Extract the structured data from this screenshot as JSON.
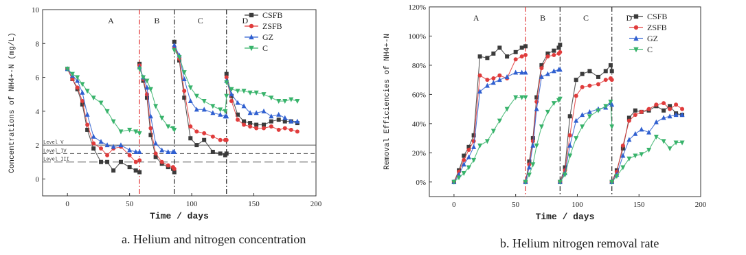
{
  "chart_data": [
    {
      "type": "line",
      "panel": "a",
      "caption": "a. Helium and nitrogen concentration",
      "xlabel": "Time / days",
      "ylabel": "Concentrations of NH4+-N (mg/L)",
      "xlim": [
        -20,
        200
      ],
      "ylim": [
        -1,
        10
      ],
      "xticks": [
        "0",
        "50",
        "100",
        "150",
        "200"
      ],
      "yticks": [
        "0",
        "2",
        "4",
        "6",
        "8",
        "10"
      ],
      "grid": false,
      "legend": "top-right",
      "phases": [
        {
          "label": "A",
          "x": 35
        },
        {
          "label": "B",
          "x": 72
        },
        {
          "label": "C",
          "x": 107
        },
        {
          "label": "D",
          "x": 143
        }
      ],
      "dividers": [
        {
          "x": 58,
          "color": "#e23030",
          "style": "dashdot"
        },
        {
          "x": 86,
          "color": "#222222",
          "style": "dashdot"
        },
        {
          "x": 128,
          "color": "#222222",
          "style": "dashdot"
        }
      ],
      "levels": [
        {
          "label": "Level V",
          "y": 2.0,
          "style": "solid"
        },
        {
          "label": "Level IV",
          "y": 1.5,
          "style": "dashed"
        },
        {
          "label": "Level III",
          "y": 1.0,
          "style": "longdash"
        }
      ],
      "segments": [
        [
          0,
          58
        ],
        [
          58,
          86
        ],
        [
          86,
          128
        ],
        [
          128,
          185
        ]
      ],
      "series": [
        {
          "name": "CSFB",
          "color": "#3b3b3b",
          "marker": "square",
          "x": [
            0,
            4,
            8,
            12,
            16,
            21,
            27,
            32,
            37,
            43,
            50,
            55,
            58,
            58,
            61,
            64,
            67,
            71,
            76,
            81,
            85,
            86,
            86,
            90,
            94,
            99,
            104,
            110,
            117,
            123,
            127,
            128,
            128,
            132,
            137,
            142,
            147,
            152,
            158,
            164,
            170,
            175,
            180,
            185
          ],
          "y": [
            6.5,
            5.9,
            5.3,
            4.4,
            2.9,
            1.8,
            1.0,
            1.0,
            0.5,
            1.0,
            0.7,
            0.5,
            0.4,
            6.8,
            5.8,
            4.8,
            2.6,
            1.3,
            0.9,
            0.7,
            0.6,
            0.4,
            8.1,
            7.0,
            4.8,
            2.4,
            2.0,
            2.3,
            1.6,
            1.5,
            1.4,
            1.5,
            6.2,
            4.9,
            3.8,
            3.4,
            3.3,
            3.2,
            3.2,
            3.4,
            3.5,
            3.4,
            3.4,
            3.3
          ]
        },
        {
          "name": "ZSFB",
          "color": "#e03c3c",
          "marker": "circle",
          "x": [
            0,
            4,
            8,
            12,
            16,
            21,
            27,
            32,
            37,
            43,
            50,
            55,
            58,
            58,
            61,
            64,
            67,
            71,
            76,
            81,
            85,
            86,
            86,
            90,
            94,
            99,
            104,
            110,
            117,
            123,
            127,
            128,
            128,
            132,
            137,
            142,
            147,
            152,
            158,
            164,
            170,
            175,
            180,
            185
          ],
          "y": [
            6.5,
            5.9,
            5.4,
            4.6,
            3.2,
            2.1,
            1.8,
            1.4,
            1.8,
            1.9,
            1.4,
            1.0,
            1.1,
            6.7,
            5.9,
            5.0,
            3.0,
            1.5,
            1.0,
            0.8,
            0.7,
            0.6,
            7.8,
            7.1,
            5.2,
            3.1,
            2.8,
            2.7,
            2.5,
            2.3,
            2.3,
            2.3,
            6.0,
            4.6,
            3.5,
            3.2,
            3.1,
            3.0,
            3.0,
            3.1,
            2.9,
            3.0,
            2.9,
            2.8
          ]
        },
        {
          "name": "GZ",
          "color": "#2f5fd0",
          "marker": "triangle-up",
          "x": [
            0,
            4,
            8,
            12,
            16,
            21,
            27,
            32,
            37,
            43,
            50,
            55,
            58,
            58,
            61,
            64,
            67,
            71,
            76,
            81,
            85,
            86,
            86,
            90,
            94,
            99,
            104,
            110,
            117,
            123,
            127,
            128,
            128,
            132,
            137,
            142,
            147,
            152,
            158,
            164,
            170,
            175,
            180,
            185
          ],
          "y": [
            6.5,
            6.1,
            5.8,
            5.1,
            3.8,
            2.5,
            2.2,
            2.0,
            1.9,
            2.0,
            1.7,
            1.6,
            1.6,
            6.6,
            6.0,
            5.4,
            3.7,
            2.1,
            1.7,
            1.6,
            1.6,
            1.6,
            7.9,
            7.3,
            5.9,
            4.6,
            4.1,
            4.1,
            3.9,
            3.8,
            3.7,
            3.7,
            5.8,
            5.0,
            4.5,
            4.3,
            3.9,
            3.9,
            4.0,
            3.7,
            3.8,
            3.6,
            3.4,
            3.4
          ]
        },
        {
          "name": "C",
          "color": "#38b36b",
          "marker": "triangle-down",
          "x": [
            0,
            4,
            8,
            12,
            16,
            21,
            27,
            32,
            37,
            43,
            50,
            55,
            58,
            58,
            61,
            64,
            67,
            71,
            76,
            81,
            85,
            86,
            86,
            90,
            94,
            99,
            104,
            110,
            117,
            123,
            127,
            128,
            128,
            132,
            137,
            142,
            147,
            152,
            158,
            164,
            170,
            175,
            180,
            185
          ],
          "y": [
            6.5,
            6.2,
            6.0,
            5.6,
            5.2,
            4.8,
            4.5,
            4.0,
            3.4,
            2.8,
            2.9,
            2.8,
            2.7,
            6.5,
            6.0,
            5.8,
            5.3,
            4.3,
            3.6,
            3.1,
            3.0,
            2.9,
            7.6,
            7.2,
            6.3,
            5.4,
            4.9,
            4.6,
            4.3,
            4.1,
            4.0,
            4.9,
            5.7,
            5.3,
            5.2,
            5.2,
            5.1,
            5.1,
            5.0,
            4.8,
            4.6,
            4.6,
            4.7,
            4.6
          ]
        }
      ]
    },
    {
      "type": "line",
      "panel": "b",
      "caption": "b. Helium nitrogen removal rate",
      "xlabel": "Time / days",
      "ylabel": "Removal Efficiencies of NH4+-N",
      "xlim": [
        -20,
        200
      ],
      "ylim": [
        -10,
        120
      ],
      "xticks": [
        "0",
        "50",
        "100",
        "150",
        "200"
      ],
      "yticks": [
        "0%",
        "20%",
        "40%",
        "60%",
        "80%",
        "100%",
        "120%"
      ],
      "grid": false,
      "legend": "top-right",
      "phases": [
        {
          "label": "A",
          "x": 18
        },
        {
          "label": "B",
          "x": 72
        },
        {
          "label": "C",
          "x": 107
        },
        {
          "label": "D",
          "x": 142
        }
      ],
      "dividers": [
        {
          "x": 58,
          "color": "#e23030",
          "style": "dashdot"
        },
        {
          "x": 86,
          "color": "#222222",
          "style": "dashdot"
        },
        {
          "x": 128,
          "color": "#222222",
          "style": "dashdot"
        }
      ],
      "segments": [
        [
          0,
          58
        ],
        [
          58,
          86
        ],
        [
          86,
          128
        ],
        [
          128,
          185
        ]
      ],
      "series": [
        {
          "name": "CSFB",
          "color": "#3b3b3b",
          "marker": "square",
          "x": [
            0,
            4,
            8,
            12,
            16,
            21,
            27,
            32,
            37,
            43,
            50,
            55,
            58,
            58,
            61,
            64,
            67,
            71,
            76,
            81,
            85,
            86,
            86,
            90,
            94,
            99,
            104,
            110,
            117,
            123,
            127,
            128,
            128,
            132,
            137,
            142,
            147,
            152,
            158,
            164,
            170,
            175,
            180,
            185
          ],
          "y": [
            0,
            8,
            18,
            24,
            32,
            86,
            85,
            88,
            92,
            86,
            89,
            92,
            93,
            0,
            14,
            30,
            58,
            80,
            88,
            90,
            92,
            94,
            0,
            10,
            45,
            70,
            74,
            76,
            72,
            76,
            80,
            76,
            0,
            8,
            23,
            44,
            49,
            48,
            49,
            52,
            49,
            52,
            47,
            46
          ]
        },
        {
          "name": "ZSFB",
          "color": "#e03c3c",
          "marker": "circle",
          "x": [
            0,
            4,
            8,
            12,
            16,
            21,
            27,
            32,
            37,
            43,
            50,
            55,
            58,
            58,
            61,
            64,
            67,
            71,
            76,
            81,
            85,
            86,
            86,
            90,
            94,
            99,
            104,
            110,
            117,
            123,
            127,
            128,
            128,
            132,
            137,
            142,
            147,
            152,
            158,
            164,
            170,
            175,
            180,
            185
          ],
          "y": [
            0,
            7,
            15,
            22,
            28,
            73,
            70,
            71,
            73,
            71,
            84,
            86,
            87,
            0,
            12,
            28,
            55,
            78,
            86,
            87,
            88,
            89,
            0,
            8,
            32,
            59,
            65,
            66,
            67,
            70,
            71,
            70,
            0,
            7,
            25,
            42,
            46,
            48,
            50,
            53,
            54,
            50,
            53,
            50
          ]
        },
        {
          "name": "GZ",
          "color": "#2f5fd0",
          "marker": "triangle-up",
          "x": [
            0,
            4,
            8,
            12,
            16,
            21,
            27,
            32,
            37,
            43,
            50,
            55,
            58,
            58,
            61,
            64,
            67,
            71,
            76,
            81,
            85,
            86,
            86,
            90,
            94,
            99,
            104,
            110,
            117,
            123,
            127,
            128,
            128,
            132,
            137,
            142,
            147,
            152,
            158,
            164,
            170,
            175,
            180,
            185
          ],
          "y": [
            0,
            5,
            12,
            17,
            24,
            62,
            66,
            68,
            70,
            72,
            75,
            75,
            75,
            0,
            10,
            25,
            50,
            72,
            74,
            76,
            77,
            77,
            0,
            6,
            25,
            42,
            46,
            48,
            50,
            51,
            54,
            53,
            0,
            5,
            18,
            29,
            33,
            36,
            34,
            41,
            44,
            45,
            46,
            46
          ]
        },
        {
          "name": "C",
          "color": "#38b36b",
          "marker": "triangle-down",
          "x": [
            0,
            4,
            8,
            12,
            16,
            21,
            27,
            32,
            37,
            43,
            50,
            55,
            58,
            58,
            61,
            64,
            67,
            71,
            76,
            81,
            85,
            86,
            86,
            90,
            94,
            99,
            104,
            110,
            117,
            123,
            127,
            128,
            128,
            132,
            137,
            142,
            147,
            152,
            158,
            164,
            170,
            175,
            180,
            185
          ],
          "y": [
            0,
            3,
            6,
            10,
            15,
            25,
            28,
            35,
            42,
            50,
            58,
            58,
            58,
            0,
            5,
            12,
            25,
            38,
            48,
            54,
            56,
            57,
            0,
            5,
            18,
            30,
            38,
            45,
            49,
            52,
            55,
            38,
            0,
            4,
            10,
            16,
            18,
            19,
            22,
            31,
            28,
            23,
            27,
            27
          ]
        }
      ]
    }
  ]
}
